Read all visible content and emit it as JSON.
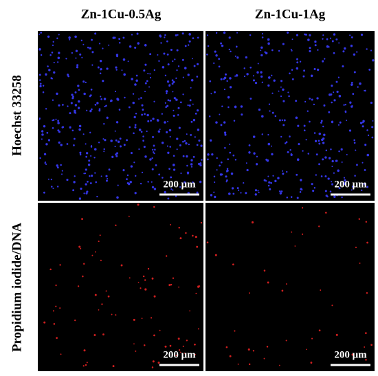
{
  "columns": [
    "Zn-1Cu-0.5Ag",
    "Zn-1Cu-1Ag"
  ],
  "rows": [
    "Hoechst 33258",
    "Propidium iodide/DNA"
  ],
  "panels": [
    {
      "scale_bar": "200 μm"
    },
    {
      "scale_bar": "200 μm"
    },
    {
      "scale_bar": "200 μm"
    },
    {
      "scale_bar": "200 μm"
    }
  ]
}
